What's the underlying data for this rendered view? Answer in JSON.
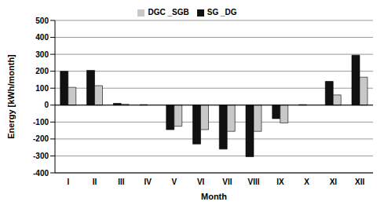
{
  "chart_data": {
    "type": "bar",
    "x_label": "Month",
    "y_label": "Energy [kWh/month]",
    "categories": [
      "I",
      "II",
      "III",
      "IV",
      "V",
      "VI",
      "VII",
      "VIII",
      "IX",
      "X",
      "XI",
      "XII"
    ],
    "series": [
      {
        "name": "SG _DG",
        "color": "#111111",
        "values": [
          200,
          205,
          10,
          3,
          -145,
          -230,
          -260,
          -305,
          -80,
          3,
          140,
          295
        ]
      },
      {
        "name": "DGC _SGB",
        "color": "#c8c8c8",
        "values": [
          105,
          115,
          5,
          0,
          -125,
          -145,
          -155,
          -155,
          -105,
          0,
          60,
          165
        ]
      }
    ],
    "ylim": [
      -400,
      500
    ],
    "yticks": [
      -400,
      -300,
      -200,
      -100,
      0,
      100,
      200,
      300,
      400,
      500
    ],
    "grid": true,
    "legend": "top"
  }
}
